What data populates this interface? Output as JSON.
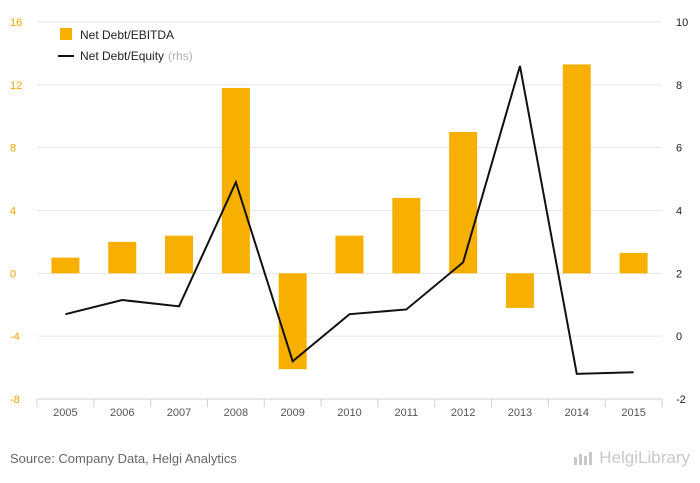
{
  "chart_data": {
    "type": "bar",
    "categories": [
      "2005",
      "2006",
      "2007",
      "2008",
      "2009",
      "2010",
      "2011",
      "2012",
      "2013",
      "2014",
      "2015"
    ],
    "series": [
      {
        "name": "Net Debt/EBITDA",
        "type": "bar",
        "axis": "left",
        "values": [
          1.0,
          2.0,
          2.4,
          11.8,
          -6.1,
          2.4,
          4.8,
          9.0,
          -2.2,
          13.3,
          1.3
        ]
      },
      {
        "name": "Net Debt/Equity",
        "note": "(rhs)",
        "type": "line",
        "axis": "right",
        "values": [
          0.7,
          1.15,
          0.95,
          4.9,
          -0.8,
          0.7,
          0.85,
          2.35,
          8.6,
          -1.2,
          -1.15
        ]
      }
    ],
    "left_axis": {
      "ylim": [
        -8,
        16
      ],
      "ticks": [
        "-8",
        "-4",
        "0",
        "4",
        "8",
        "12",
        "16"
      ]
    },
    "right_axis": {
      "ylim": [
        -2,
        10
      ],
      "ticks": [
        "-2",
        "0",
        "2",
        "4",
        "6",
        "8",
        "10"
      ]
    },
    "grid": true,
    "legend": "top-left",
    "colors": {
      "bar": "#f7b000",
      "line": "#111111",
      "left_ticks": "#f0a500",
      "grid": "#e6e6e6"
    }
  },
  "footer": {
    "source": "Source: Company Data, Helgi Analytics",
    "brand": "HelgiLibrary"
  }
}
